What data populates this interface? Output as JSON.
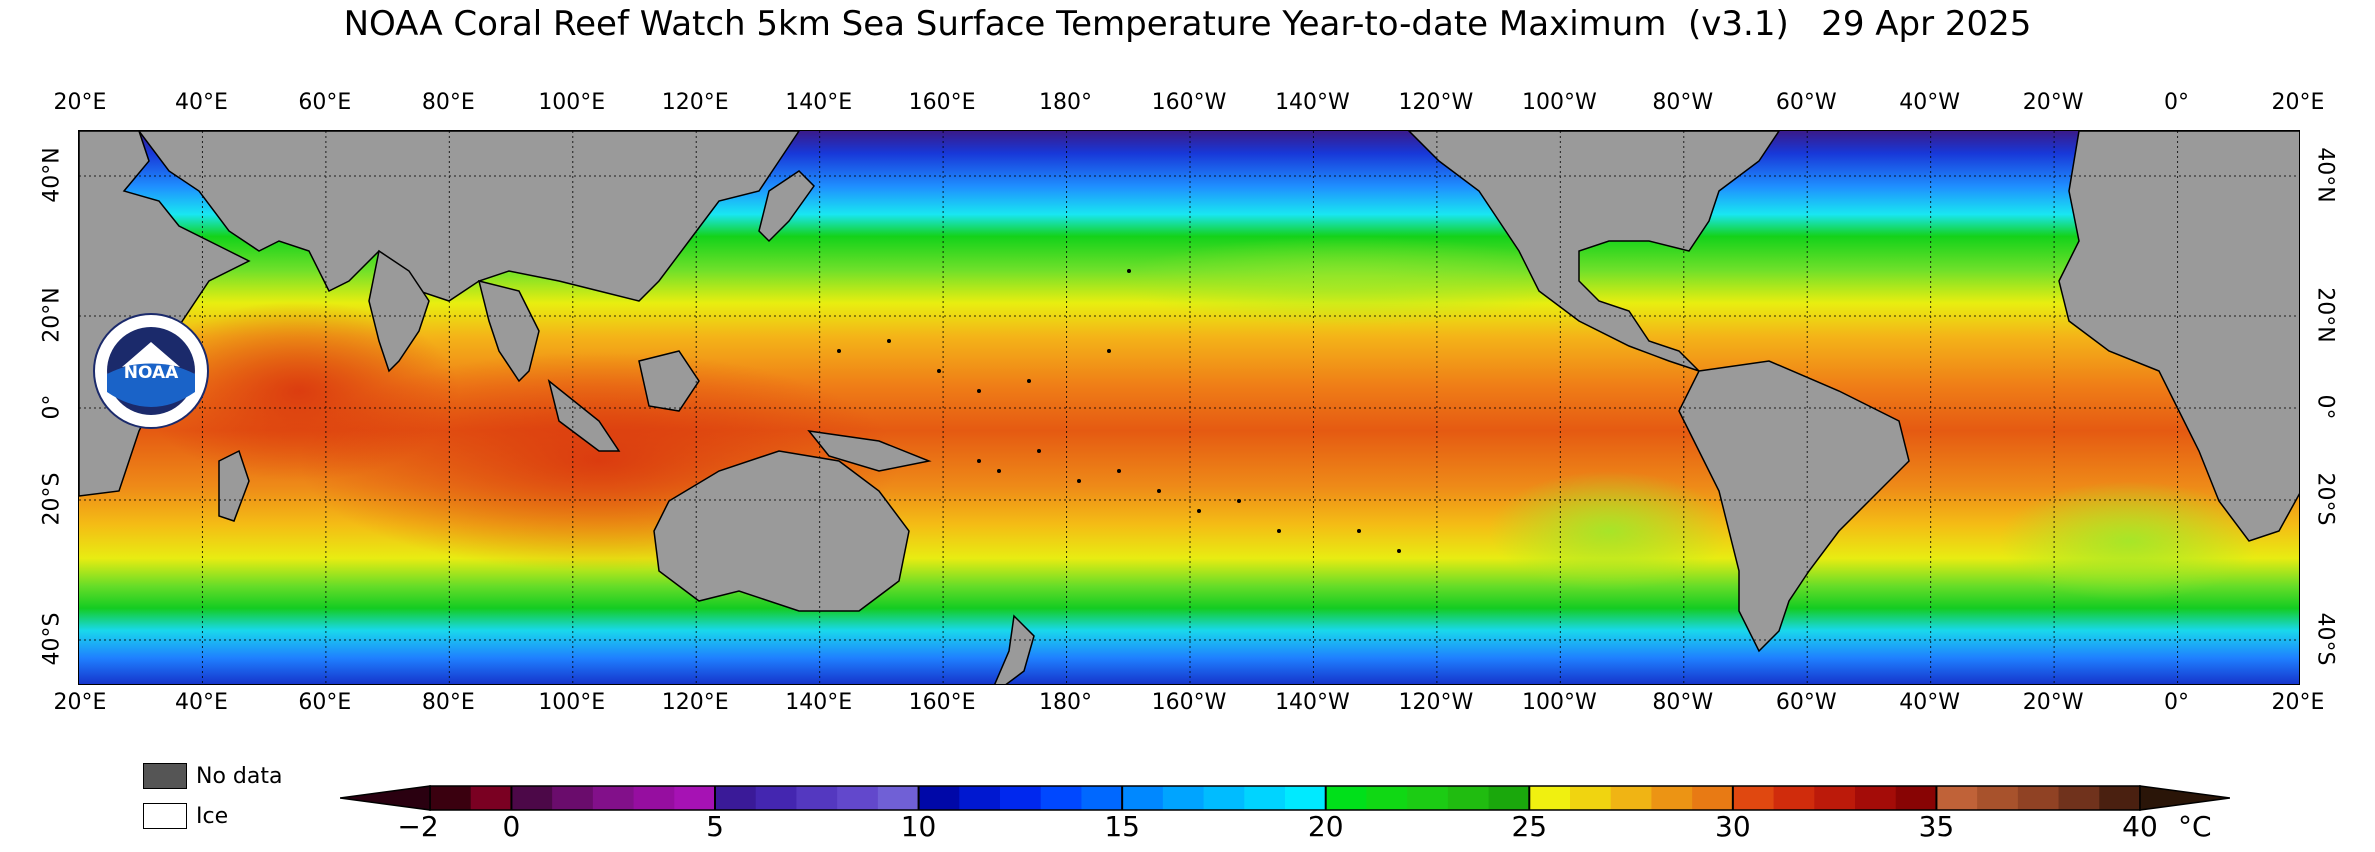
{
  "title": "NOAA Coral Reef Watch 5km Sea Surface Temperature Year-to-date Maximum  (v3.1)   29 Apr 2025",
  "longitude_labels": [
    "20°E",
    "40°E",
    "60°E",
    "80°E",
    "100°E",
    "120°E",
    "140°E",
    "160°E",
    "180°",
    "160°W",
    "140°W",
    "120°W",
    "100°W",
    "80°W",
    "60°W",
    "40°W",
    "20°W",
    "0°",
    "20°E"
  ],
  "latitude_labels": [
    "40°N",
    "20°N",
    "0°",
    "20°S",
    "40°S"
  ],
  "legend": {
    "no_data": "No data",
    "ice": "Ice"
  },
  "colorbar": {
    "ticks": [
      "−2",
      "0",
      "5",
      "10",
      "15",
      "20",
      "25",
      "30",
      "35",
      "40"
    ],
    "unit": "°C",
    "min": -2,
    "max": 40
  },
  "colors": {
    "land": "#9a9a9a",
    "no_data": "#555555",
    "ice": "#ffffff"
  }
}
